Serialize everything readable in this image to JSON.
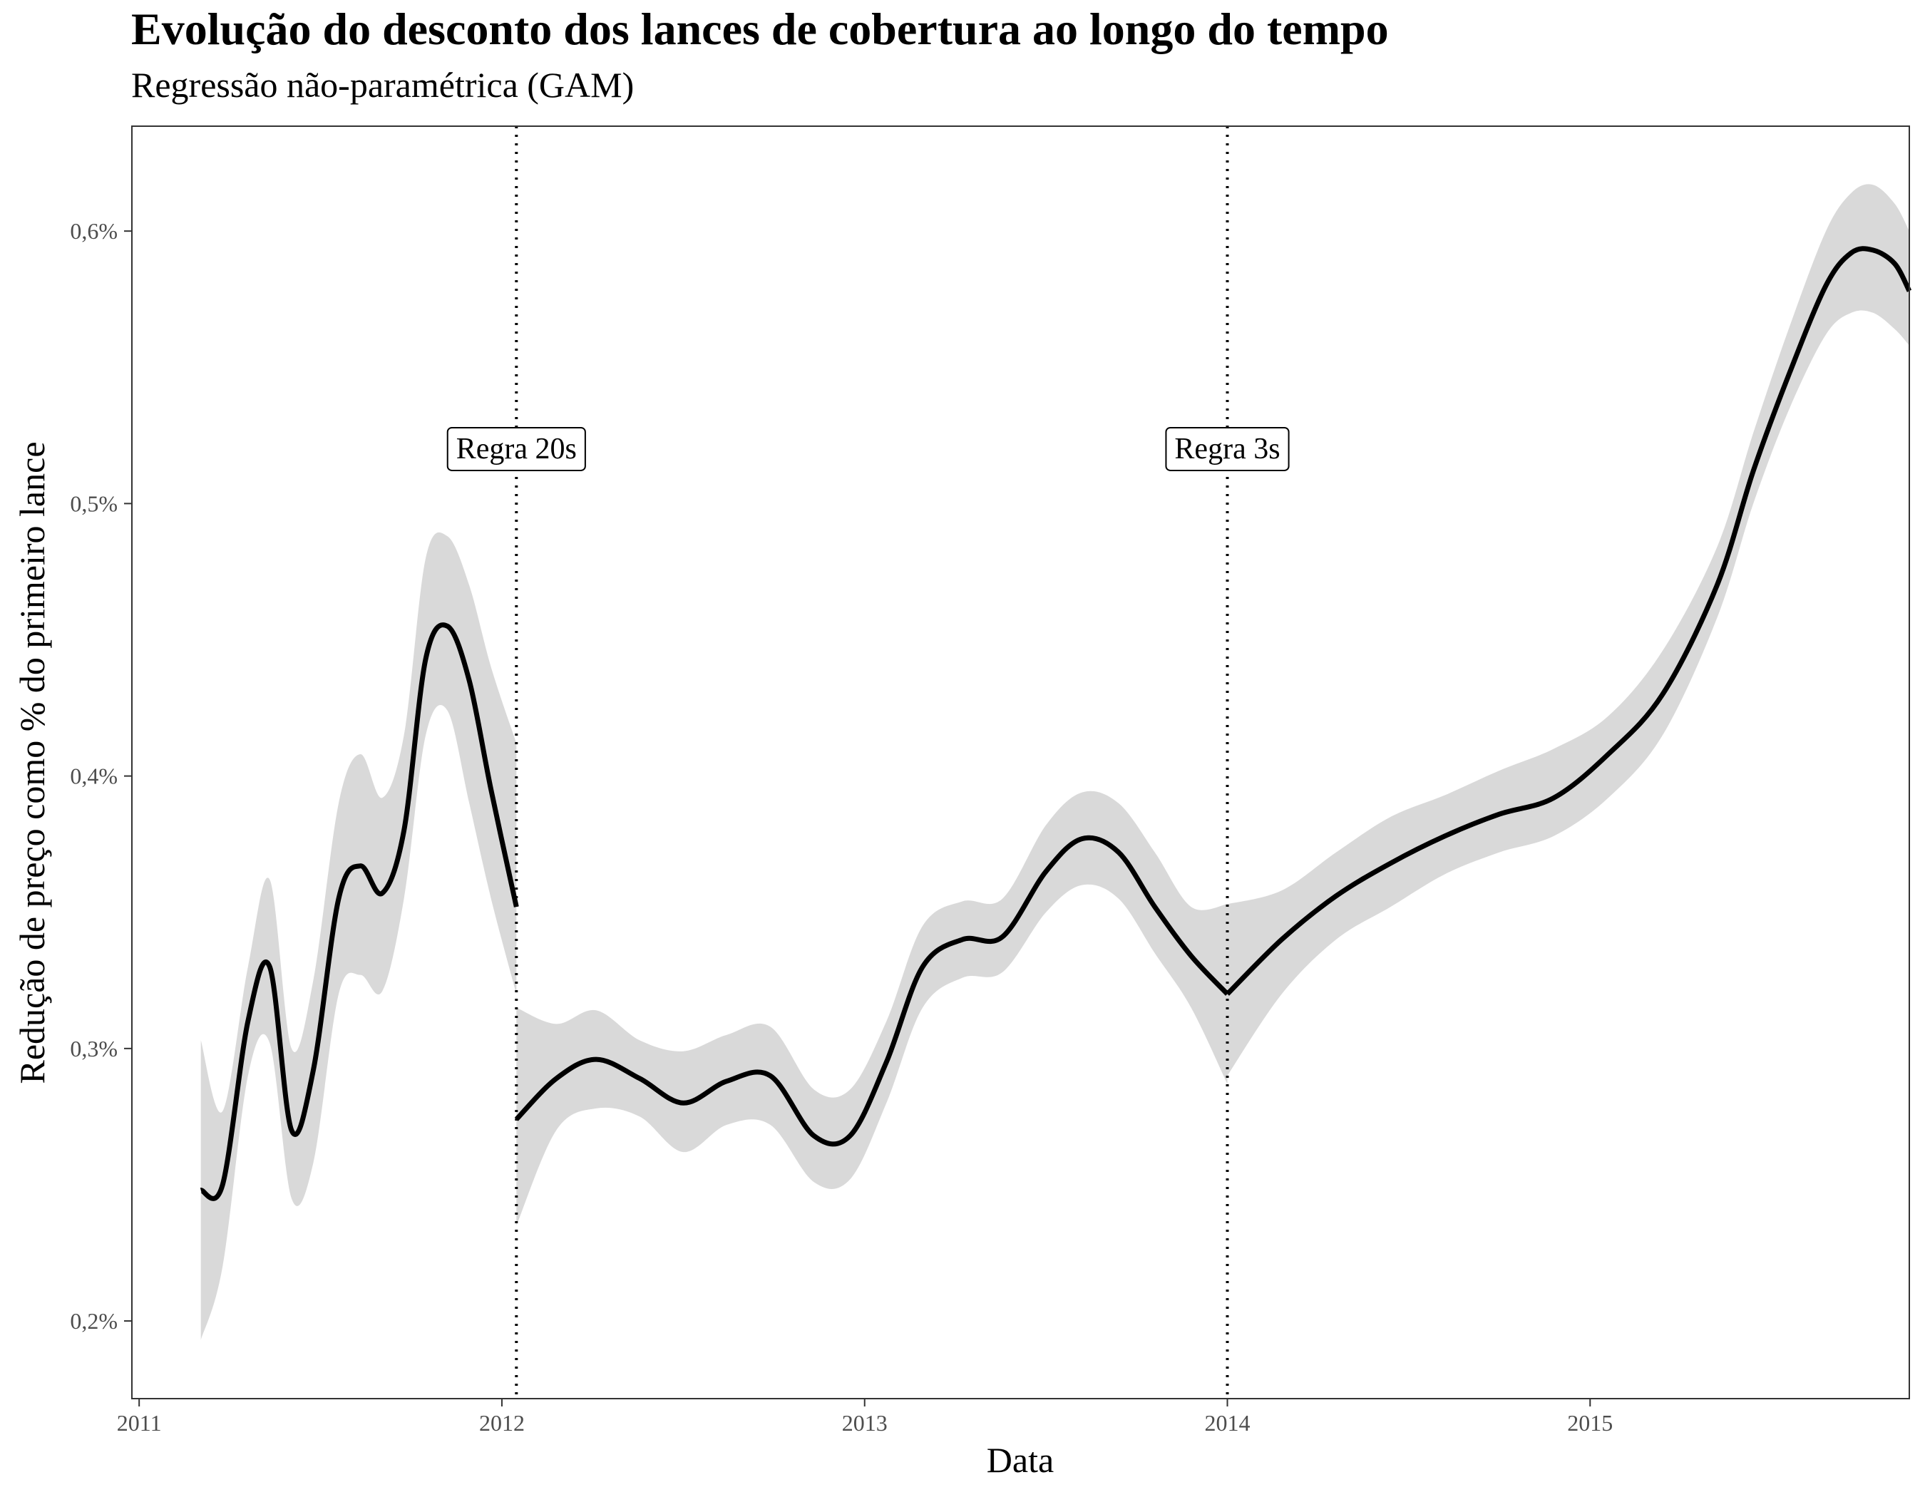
{
  "chart_data": {
    "type": "line",
    "title": "Evolução do desconto dos lances de cobertura ao longo do tempo",
    "subtitle": "Regressão não-paramétrica (GAM)",
    "xlabel": "Data",
    "ylabel": "Redução de preço como % do primeiro lance",
    "xlim": [
      2010.98,
      2015.88
    ],
    "ylim": [
      0.1715,
      0.6385
    ],
    "x_ticks": [
      2011,
      2012,
      2013,
      2014,
      2015
    ],
    "x_tick_labels": [
      "2011",
      "2012",
      "2013",
      "2014",
      "2015"
    ],
    "y_ticks": [
      0.2,
      0.3,
      0.4,
      0.5,
      0.6
    ],
    "y_tick_labels": [
      "0,2%",
      "0,3%",
      "0,4%",
      "0,5%",
      "0,6%"
    ],
    "grid": false,
    "line_color": "#000000",
    "ribbon_color": "#d9d9d9",
    "vlines": [
      {
        "x": 2012.04,
        "label": "Regra 20s",
        "label_y": 0.52,
        "style": "dotted"
      },
      {
        "x": 2014.0,
        "label": "Regra 3s",
        "label_y": 0.52,
        "style": "dotted"
      }
    ],
    "segments": [
      {
        "x": [
          2011.17,
          2011.23,
          2011.3,
          2011.36,
          2011.42,
          2011.48,
          2011.55,
          2011.61,
          2011.67,
          2011.73,
          2011.79,
          2011.85,
          2011.91,
          2011.97,
          2012.04
        ],
        "y": [
          0.248,
          0.25,
          0.31,
          0.33,
          0.27,
          0.292,
          0.355,
          0.367,
          0.357,
          0.38,
          0.443,
          0.455,
          0.435,
          0.395,
          0.352
        ],
        "lower": [
          0.193,
          0.22,
          0.29,
          0.302,
          0.245,
          0.258,
          0.32,
          0.327,
          0.321,
          0.355,
          0.415,
          0.424,
          0.39,
          0.355,
          0.32
        ],
        "upper": [
          0.303,
          0.277,
          0.33,
          0.362,
          0.3,
          0.325,
          0.39,
          0.408,
          0.392,
          0.415,
          0.48,
          0.488,
          0.47,
          0.44,
          0.412
        ]
      },
      {
        "x": [
          2012.04,
          2012.15,
          2012.26,
          2012.38,
          2012.5,
          2012.62,
          2012.74,
          2012.86,
          2012.96,
          2013.06,
          2013.16,
          2013.27,
          2013.38,
          2013.5,
          2013.6,
          2013.7,
          2013.8,
          2013.9,
          2014.0
        ],
        "y": [
          0.274,
          0.289,
          0.296,
          0.289,
          0.28,
          0.288,
          0.29,
          0.268,
          0.268,
          0.295,
          0.33,
          0.34,
          0.341,
          0.365,
          0.377,
          0.372,
          0.352,
          0.334,
          0.32
        ],
        "lower": [
          0.235,
          0.27,
          0.278,
          0.275,
          0.262,
          0.272,
          0.272,
          0.251,
          0.252,
          0.28,
          0.315,
          0.326,
          0.328,
          0.35,
          0.36,
          0.355,
          0.335,
          0.315,
          0.287
        ],
        "upper": [
          0.315,
          0.309,
          0.314,
          0.303,
          0.299,
          0.305,
          0.308,
          0.285,
          0.285,
          0.31,
          0.345,
          0.354,
          0.355,
          0.382,
          0.394,
          0.39,
          0.372,
          0.352,
          0.353
        ]
      },
      {
        "x": [
          2014.0,
          2014.15,
          2014.3,
          2014.45,
          2014.6,
          2014.75,
          2014.9,
          2015.05,
          2015.2,
          2015.35,
          2015.45,
          2015.55,
          2015.65,
          2015.72,
          2015.78,
          2015.84,
          2015.88
        ],
        "y": [
          0.32,
          0.34,
          0.356,
          0.368,
          0.378,
          0.386,
          0.392,
          0.408,
          0.43,
          0.47,
          0.512,
          0.548,
          0.58,
          0.592,
          0.593,
          0.588,
          0.578
        ],
        "lower": [
          0.29,
          0.32,
          0.34,
          0.352,
          0.364,
          0.372,
          0.378,
          0.392,
          0.415,
          0.458,
          0.5,
          0.535,
          0.562,
          0.57,
          0.57,
          0.564,
          0.558
        ],
        "upper": [
          0.353,
          0.358,
          0.372,
          0.385,
          0.393,
          0.402,
          0.41,
          0.422,
          0.446,
          0.484,
          0.526,
          0.565,
          0.6,
          0.614,
          0.617,
          0.61,
          0.6
        ]
      }
    ]
  }
}
